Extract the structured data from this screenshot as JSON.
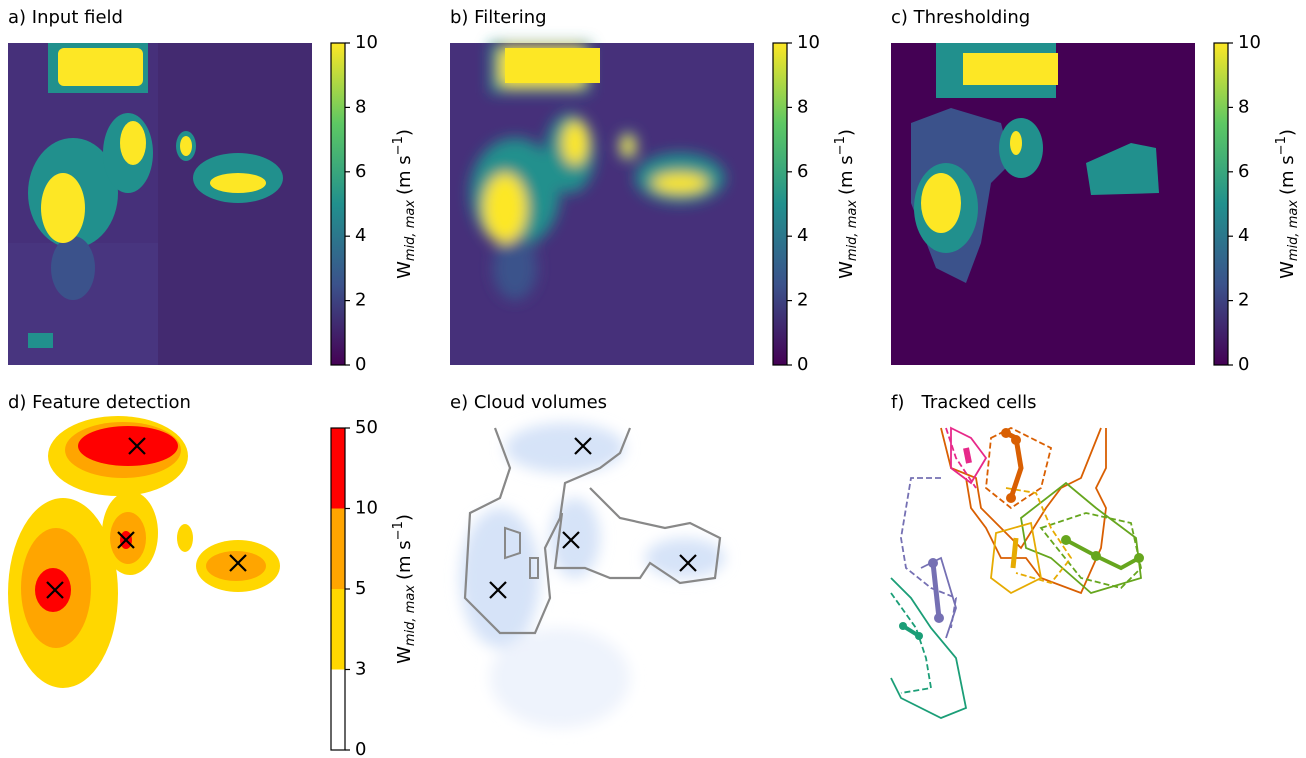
{
  "chart_data": [
    {
      "type": "heatmap",
      "title": "a) Input field",
      "colorbar": {
        "ylim": [
          0,
          10
        ],
        "yticks": [
          0,
          2,
          4,
          6,
          8,
          10
        ],
        "label": {
          "symbol": "W",
          "subscript": "mid, max",
          "unit": "(m s",
          "exponent": "−1",
          "close": ")"
        }
      }
    },
    {
      "type": "heatmap",
      "title": "b) Filtering",
      "colorbar": {
        "ylim": [
          0,
          10
        ],
        "yticks": [
          0,
          2,
          4,
          6,
          8,
          10
        ],
        "label": {
          "symbol": "W",
          "subscript": "mid, max",
          "unit": "(m s",
          "exponent": "−1",
          "close": ")"
        }
      }
    },
    {
      "type": "heatmap",
      "title": "c) Thresholding",
      "colorbar": {
        "ylim": [
          0,
          10
        ],
        "yticks": [
          0,
          2,
          4,
          6,
          8,
          10
        ],
        "label": {
          "symbol": "W",
          "subscript": "mid, max",
          "unit": "(m s",
          "exponent": "−1",
          "close": ")"
        }
      }
    },
    {
      "type": "contour",
      "title": "d) Feature detection",
      "colorbar": {
        "levels": [
          0,
          3,
          5,
          10,
          50
        ],
        "colors": [
          "#ffffff",
          "#ffd700",
          "#ffa500",
          "#ff0000"
        ],
        "label": {
          "symbol": "W",
          "subscript": "mid, max",
          "unit": "(m s",
          "exponent": "−1",
          "close": ")"
        }
      }
    },
    {
      "type": "mask",
      "title": "e) Cloud volumes"
    },
    {
      "type": "tracks",
      "title": "f)   Tracked cells"
    }
  ]
}
